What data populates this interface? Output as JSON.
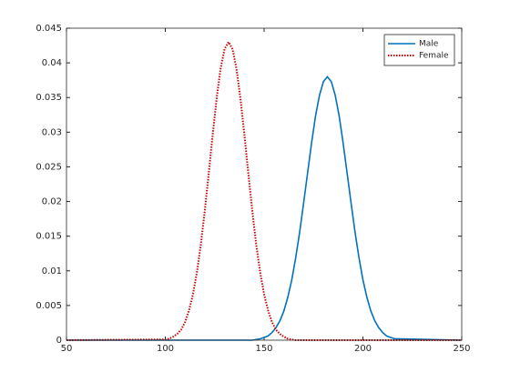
{
  "chart_data": {
    "type": "line",
    "x": [
      50,
      100,
      102,
      104,
      106,
      108,
      110,
      112,
      114,
      116,
      118,
      120,
      122,
      124,
      126,
      128,
      130,
      132,
      134,
      136,
      138,
      140,
      142,
      144,
      146,
      148,
      150,
      152,
      154,
      156,
      158,
      160,
      162,
      164,
      166,
      168,
      170,
      172,
      174,
      176,
      178,
      180,
      182,
      184,
      186,
      188,
      190,
      192,
      194,
      196,
      198,
      200,
      202,
      204,
      206,
      208,
      210,
      212,
      214,
      216,
      250
    ],
    "series": [
      {
        "name": "Male",
        "color": "#0072bd",
        "linestyle": "solid",
        "values": [
          0,
          0,
          0,
          0,
          0,
          0,
          0,
          0,
          0,
          0,
          0,
          0,
          0,
          0,
          0,
          0,
          0,
          0,
          0,
          0,
          0,
          0,
          0,
          0,
          0.0001,
          0.0002,
          0.0004,
          0.0006,
          0.0011,
          0.0018,
          0.0028,
          0.0042,
          0.0062,
          0.0087,
          0.0119,
          0.0156,
          0.0198,
          0.0241,
          0.0284,
          0.0323,
          0.0353,
          0.0373,
          0.038,
          0.0373,
          0.0353,
          0.0323,
          0.0284,
          0.0241,
          0.0198,
          0.0156,
          0.0119,
          0.0087,
          0.0062,
          0.0042,
          0.0028,
          0.0018,
          0.0011,
          0.0006,
          0.0004,
          0.0002,
          0
        ]
      },
      {
        "name": "Female",
        "color": "#cc0000",
        "linestyle": "dotted",
        "values": [
          0,
          0.0001,
          0.0002,
          0.0005,
          0.0009,
          0.0015,
          0.0026,
          0.0043,
          0.0066,
          0.0098,
          0.0138,
          0.0187,
          0.0241,
          0.0297,
          0.0349,
          0.0392,
          0.042,
          0.043,
          0.042,
          0.0392,
          0.0349,
          0.0297,
          0.0241,
          0.0187,
          0.0138,
          0.0098,
          0.0066,
          0.0043,
          0.0026,
          0.0015,
          0.0009,
          0.0005,
          0.0002,
          0.0001,
          0,
          0,
          0,
          0,
          0,
          0,
          0,
          0,
          0,
          0,
          0,
          0,
          0,
          0,
          0,
          0,
          0,
          0,
          0,
          0,
          0,
          0,
          0,
          0,
          0,
          0,
          0
        ]
      }
    ],
    "xlim": [
      50,
      250
    ],
    "xticks": [
      50,
      100,
      150,
      200,
      250
    ],
    "ylim": [
      0,
      0.045
    ],
    "yticks": [
      0,
      0.005,
      0.01,
      0.015,
      0.02,
      0.025,
      0.03,
      0.035,
      0.04,
      0.045
    ],
    "grid": false,
    "legend": "northeast"
  }
}
